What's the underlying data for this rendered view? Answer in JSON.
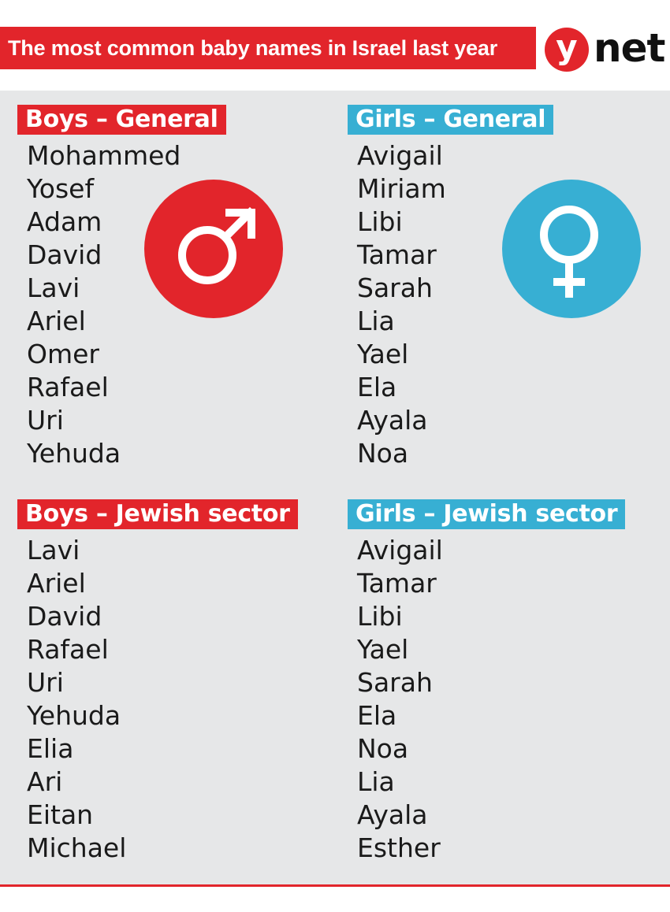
{
  "header": {
    "title": "The most common baby names in Israel last year",
    "logo_y": "y",
    "logo_net": "net"
  },
  "colors": {
    "red": "#e2252b",
    "blue": "#37afd3",
    "panel": "#e6e7e8"
  },
  "icons": {
    "boys": "male-symbol-icon",
    "girls": "female-symbol-icon"
  },
  "sections": {
    "boys_general": {
      "label": "Boys – General",
      "names": [
        "Mohammed",
        "Yosef",
        "Adam",
        "David",
        "Lavi",
        "Ariel",
        "Omer",
        "Rafael",
        "Uri",
        "Yehuda"
      ]
    },
    "girls_general": {
      "label": "Girls – General",
      "names": [
        "Avigail",
        "Miriam",
        "Libi",
        "Tamar",
        "Sarah",
        "Lia",
        "Yael",
        "Ela",
        "Ayala",
        "Noa"
      ]
    },
    "boys_jewish": {
      "label": "Boys – Jewish sector",
      "names": [
        "Lavi",
        "Ariel",
        "David",
        "Rafael",
        "Uri",
        "Yehuda",
        "Elia",
        "Ari",
        "Eitan",
        "Michael"
      ]
    },
    "girls_jewish": {
      "label": "Girls – Jewish sector",
      "names": [
        "Avigail",
        "Tamar",
        "Libi",
        "Yael",
        "Sarah",
        "Ela",
        "Noa",
        "Lia",
        "Ayala",
        "Esther"
      ]
    }
  }
}
